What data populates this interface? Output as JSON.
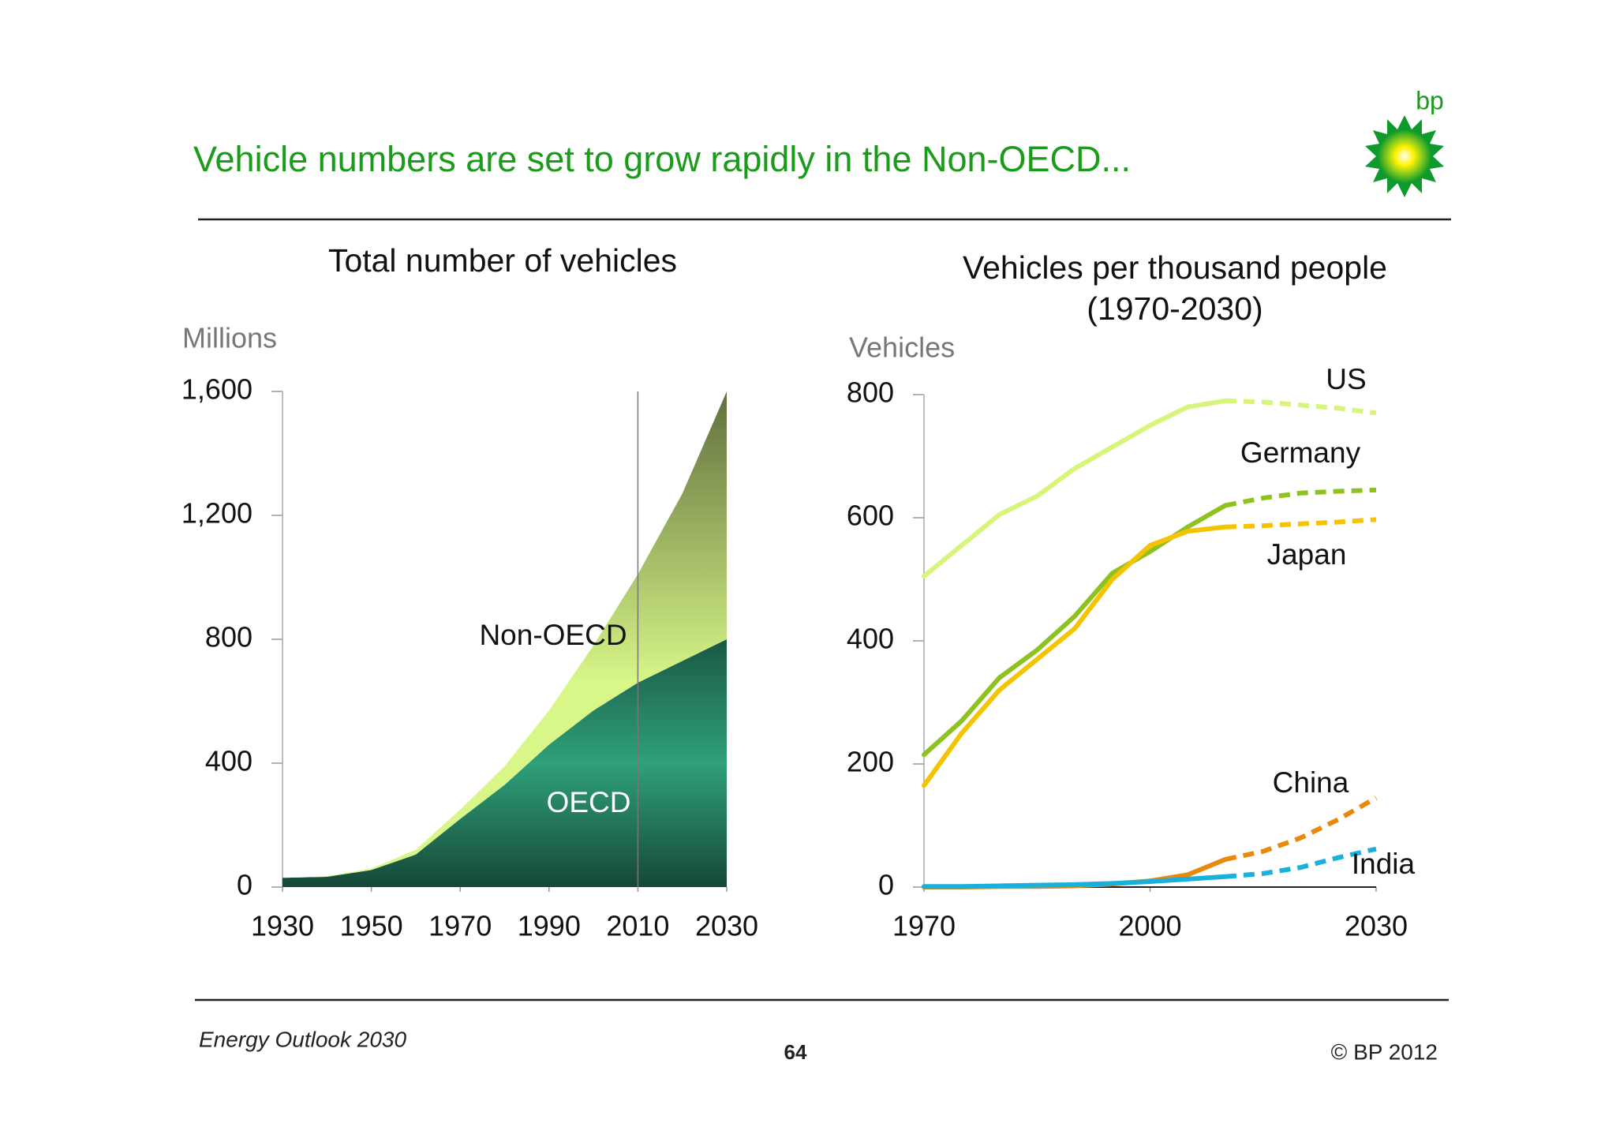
{
  "header": {
    "title": "Vehicle numbers are set to grow rapidly in the Non-OECD...",
    "logo_text": "bp"
  },
  "chart_data": [
    {
      "type": "area",
      "title": "Total number of vehicles",
      "y_label": "Millions",
      "stacked": true,
      "x": [
        1930,
        1940,
        1950,
        1960,
        1970,
        1980,
        1990,
        2000,
        2010,
        2020,
        2030
      ],
      "xlim": [
        1930,
        2030
      ],
      "xticks": [
        1930,
        1950,
        1970,
        1990,
        2010,
        2030
      ],
      "ylim": [
        0,
        1600
      ],
      "yticks": [
        0,
        400,
        800,
        {
          "value": 1200,
          "label": "1,200"
        },
        {
          "value": 1600,
          "label": "1,600"
        }
      ],
      "vline": 2010,
      "series": [
        {
          "name": "OECD",
          "color": "#2fa07a",
          "values": [
            30,
            33,
            55,
            105,
            220,
            330,
            460,
            570,
            660,
            730,
            800
          ]
        },
        {
          "name": "Non-OECD",
          "color": "#d8f788",
          "values": [
            0,
            2,
            5,
            15,
            30,
            60,
            110,
            210,
            350,
            540,
            800
          ]
        }
      ]
    },
    {
      "type": "line",
      "title": "Vehicles per thousand people",
      "subtitle": "(1970-2030)",
      "y_label": "Vehicles",
      "x": [
        1970,
        1975,
        1980,
        1985,
        1990,
        1995,
        2000,
        2005,
        2010,
        2015,
        2020,
        2025,
        2030
      ],
      "xlim": [
        1970,
        2030
      ],
      "xticks": [
        1970,
        2000,
        2030
      ],
      "ylim": [
        0,
        800
      ],
      "yticks": [
        0,
        200,
        400,
        600,
        800
      ],
      "projection_from": 2010,
      "series": [
        {
          "name": "US",
          "color": "#d6f57a",
          "values": [
            505,
            555,
            605,
            635,
            680,
            715,
            750,
            780,
            790,
            788,
            783,
            778,
            770
          ]
        },
        {
          "name": "Germany",
          "color": "#8dc21f",
          "values": [
            215,
            270,
            340,
            385,
            440,
            510,
            545,
            585,
            620,
            632,
            640,
            643,
            645
          ]
        },
        {
          "name": "Japan",
          "color": "#f5c400",
          "values": [
            165,
            250,
            320,
            370,
            420,
            500,
            555,
            578,
            585,
            587,
            590,
            593,
            597
          ]
        },
        {
          "name": "China",
          "color": "#e8890c",
          "values": [
            0,
            0,
            1,
            1,
            2,
            5,
            10,
            20,
            45,
            58,
            80,
            110,
            145
          ]
        },
        {
          "name": "India",
          "color": "#1ab0dd",
          "values": [
            1,
            1,
            2,
            3,
            4,
            6,
            9,
            13,
            17,
            22,
            32,
            48,
            62
          ]
        }
      ]
    }
  ],
  "footer": {
    "source": "Energy Outlook 2030",
    "page": "64",
    "copyright": "© BP 2012"
  }
}
